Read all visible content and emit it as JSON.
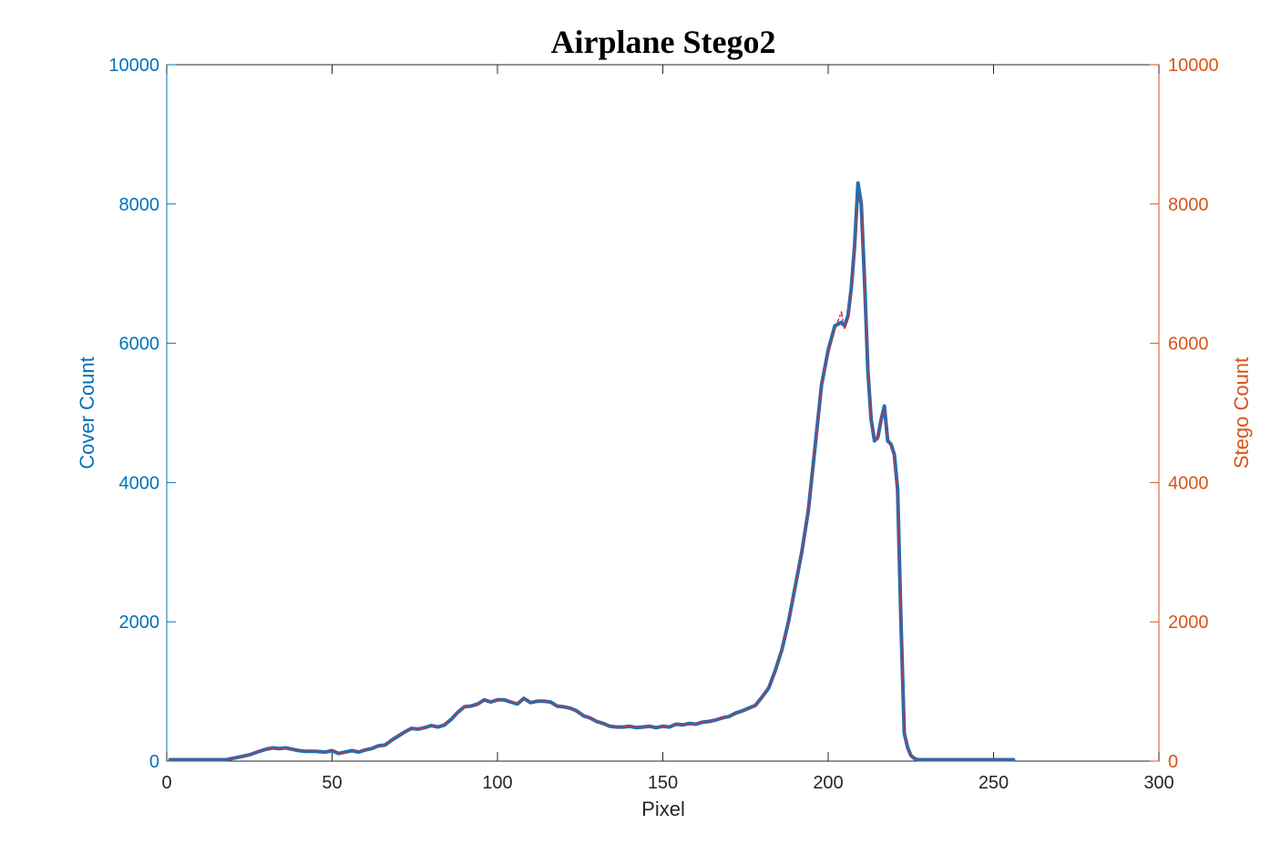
{
  "chart_data": {
    "type": "line",
    "title": "Airplane Stego2",
    "xlabel": "Pixel",
    "ylabel_left": "Cover Count",
    "ylabel_right": "Stego Count",
    "xlim": [
      0,
      300
    ],
    "ylim_left": [
      0,
      10000
    ],
    "ylim_right": [
      0,
      10000
    ],
    "xticks": [
      0,
      50,
      100,
      150,
      200,
      250,
      300
    ],
    "yticks_left": [
      0,
      2000,
      4000,
      6000,
      8000,
      10000
    ],
    "yticks_right": [
      0,
      2000,
      4000,
      6000,
      8000,
      10000
    ],
    "grid": false,
    "colors": {
      "left_axis": "#0072BD",
      "right_axis": "#D95319",
      "cover_line": "#1F6FB4",
      "stego_line": "#C8323C"
    },
    "series": [
      {
        "axis": "left",
        "style": "solid-thick",
        "x": [
          1,
          10,
          18,
          20,
          22,
          25,
          28,
          30,
          32,
          34,
          36,
          38,
          40,
          42,
          45,
          48,
          50,
          52,
          54,
          56,
          58,
          60,
          62,
          64,
          66,
          68,
          70,
          72,
          74,
          76,
          78,
          80,
          82,
          84,
          86,
          88,
          90,
          92,
          94,
          96,
          98,
          100,
          102,
          104,
          106,
          108,
          110,
          112,
          114,
          116,
          118,
          120,
          122,
          124,
          126,
          128,
          130,
          132,
          134,
          136,
          138,
          140,
          142,
          144,
          146,
          148,
          150,
          152,
          154,
          156,
          158,
          160,
          162,
          164,
          166,
          168,
          170,
          172,
          174,
          176,
          178,
          180,
          182,
          184,
          186,
          188,
          190,
          192,
          194,
          196,
          198,
          200,
          202,
          204,
          205,
          206,
          207,
          208,
          209,
          210,
          211,
          212,
          213,
          214,
          215,
          216,
          217,
          218,
          219,
          220,
          221,
          222,
          223,
          224,
          225,
          226,
          227,
          228,
          230,
          232,
          235,
          240,
          245,
          250,
          256
        ],
        "values": [
          20,
          20,
          20,
          40,
          60,
          90,
          140,
          170,
          190,
          180,
          190,
          170,
          150,
          140,
          140,
          130,
          150,
          110,
          130,
          150,
          130,
          160,
          180,
          220,
          230,
          300,
          360,
          420,
          470,
          460,
          480,
          510,
          490,
          520,
          600,
          700,
          780,
          790,
          820,
          880,
          850,
          880,
          880,
          850,
          820,
          900,
          840,
          860,
          860,
          850,
          790,
          780,
          760,
          720,
          650,
          620,
          570,
          540,
          500,
          490,
          490,
          500,
          480,
          490,
          500,
          480,
          500,
          490,
          530,
          520,
          540,
          530,
          560,
          570,
          590,
          620,
          640,
          690,
          720,
          760,
          800,
          920,
          1050,
          1300,
          1600,
          2000,
          2500,
          3000,
          3600,
          4500,
          5400,
          5900,
          6250,
          6300,
          6250,
          6400,
          6800,
          7400,
          8300,
          8000,
          6900,
          5600,
          4900,
          4600,
          4650,
          4900,
          5100,
          4600,
          4550,
          4400,
          3900,
          2000,
          400,
          200,
          80,
          40,
          20,
          20,
          20,
          20,
          20,
          20,
          20,
          20,
          20
        ]
      },
      {
        "axis": "right",
        "style": "dash-dot-thin",
        "x": [
          1,
          10,
          18,
          20,
          22,
          25,
          28,
          30,
          32,
          34,
          36,
          38,
          40,
          42,
          45,
          48,
          50,
          52,
          54,
          56,
          58,
          60,
          62,
          64,
          66,
          68,
          70,
          72,
          74,
          76,
          78,
          80,
          82,
          84,
          86,
          88,
          90,
          92,
          94,
          96,
          98,
          100,
          102,
          104,
          106,
          108,
          110,
          112,
          114,
          116,
          118,
          120,
          122,
          124,
          126,
          128,
          130,
          132,
          134,
          136,
          138,
          140,
          142,
          144,
          146,
          148,
          150,
          152,
          154,
          156,
          158,
          160,
          162,
          164,
          166,
          168,
          170,
          172,
          174,
          176,
          178,
          180,
          182,
          184,
          186,
          188,
          190,
          192,
          194,
          196,
          198,
          200,
          202,
          204,
          205,
          206,
          207,
          208,
          209,
          210,
          211,
          212,
          213,
          214,
          215,
          216,
          217,
          218,
          219,
          220,
          221,
          222,
          223,
          224,
          225,
          226,
          227,
          228,
          230,
          232,
          235,
          240,
          245,
          250,
          256
        ],
        "values": [
          20,
          20,
          20,
          40,
          60,
          90,
          150,
          180,
          180,
          190,
          180,
          170,
          150,
          140,
          145,
          130,
          150,
          120,
          130,
          140,
          140,
          160,
          180,
          210,
          240,
          290,
          370,
          420,
          460,
          470,
          470,
          520,
          490,
          530,
          600,
          690,
          780,
          800,
          820,
          870,
          860,
          870,
          890,
          850,
          830,
          890,
          850,
          860,
          870,
          840,
          800,
          780,
          770,
          710,
          660,
          610,
          580,
          530,
          510,
          490,
          490,
          500,
          490,
          480,
          510,
          480,
          500,
          500,
          520,
          530,
          530,
          540,
          560,
          560,
          600,
          610,
          650,
          680,
          730,
          750,
          810,
          900,
          1080,
          1260,
          1620,
          1980,
          2520,
          2980,
          3620,
          4480,
          5380,
          5850,
          6200,
          6450,
          6200,
          6350,
          6750,
          7300,
          8100,
          8100,
          6800,
          5700,
          4850,
          4650,
          4600,
          4950,
          5050,
          4650,
          4500,
          4350,
          3800,
          2100,
          500,
          200,
          80,
          40,
          20,
          20,
          20,
          20,
          20,
          20,
          20,
          20,
          20
        ]
      }
    ]
  }
}
